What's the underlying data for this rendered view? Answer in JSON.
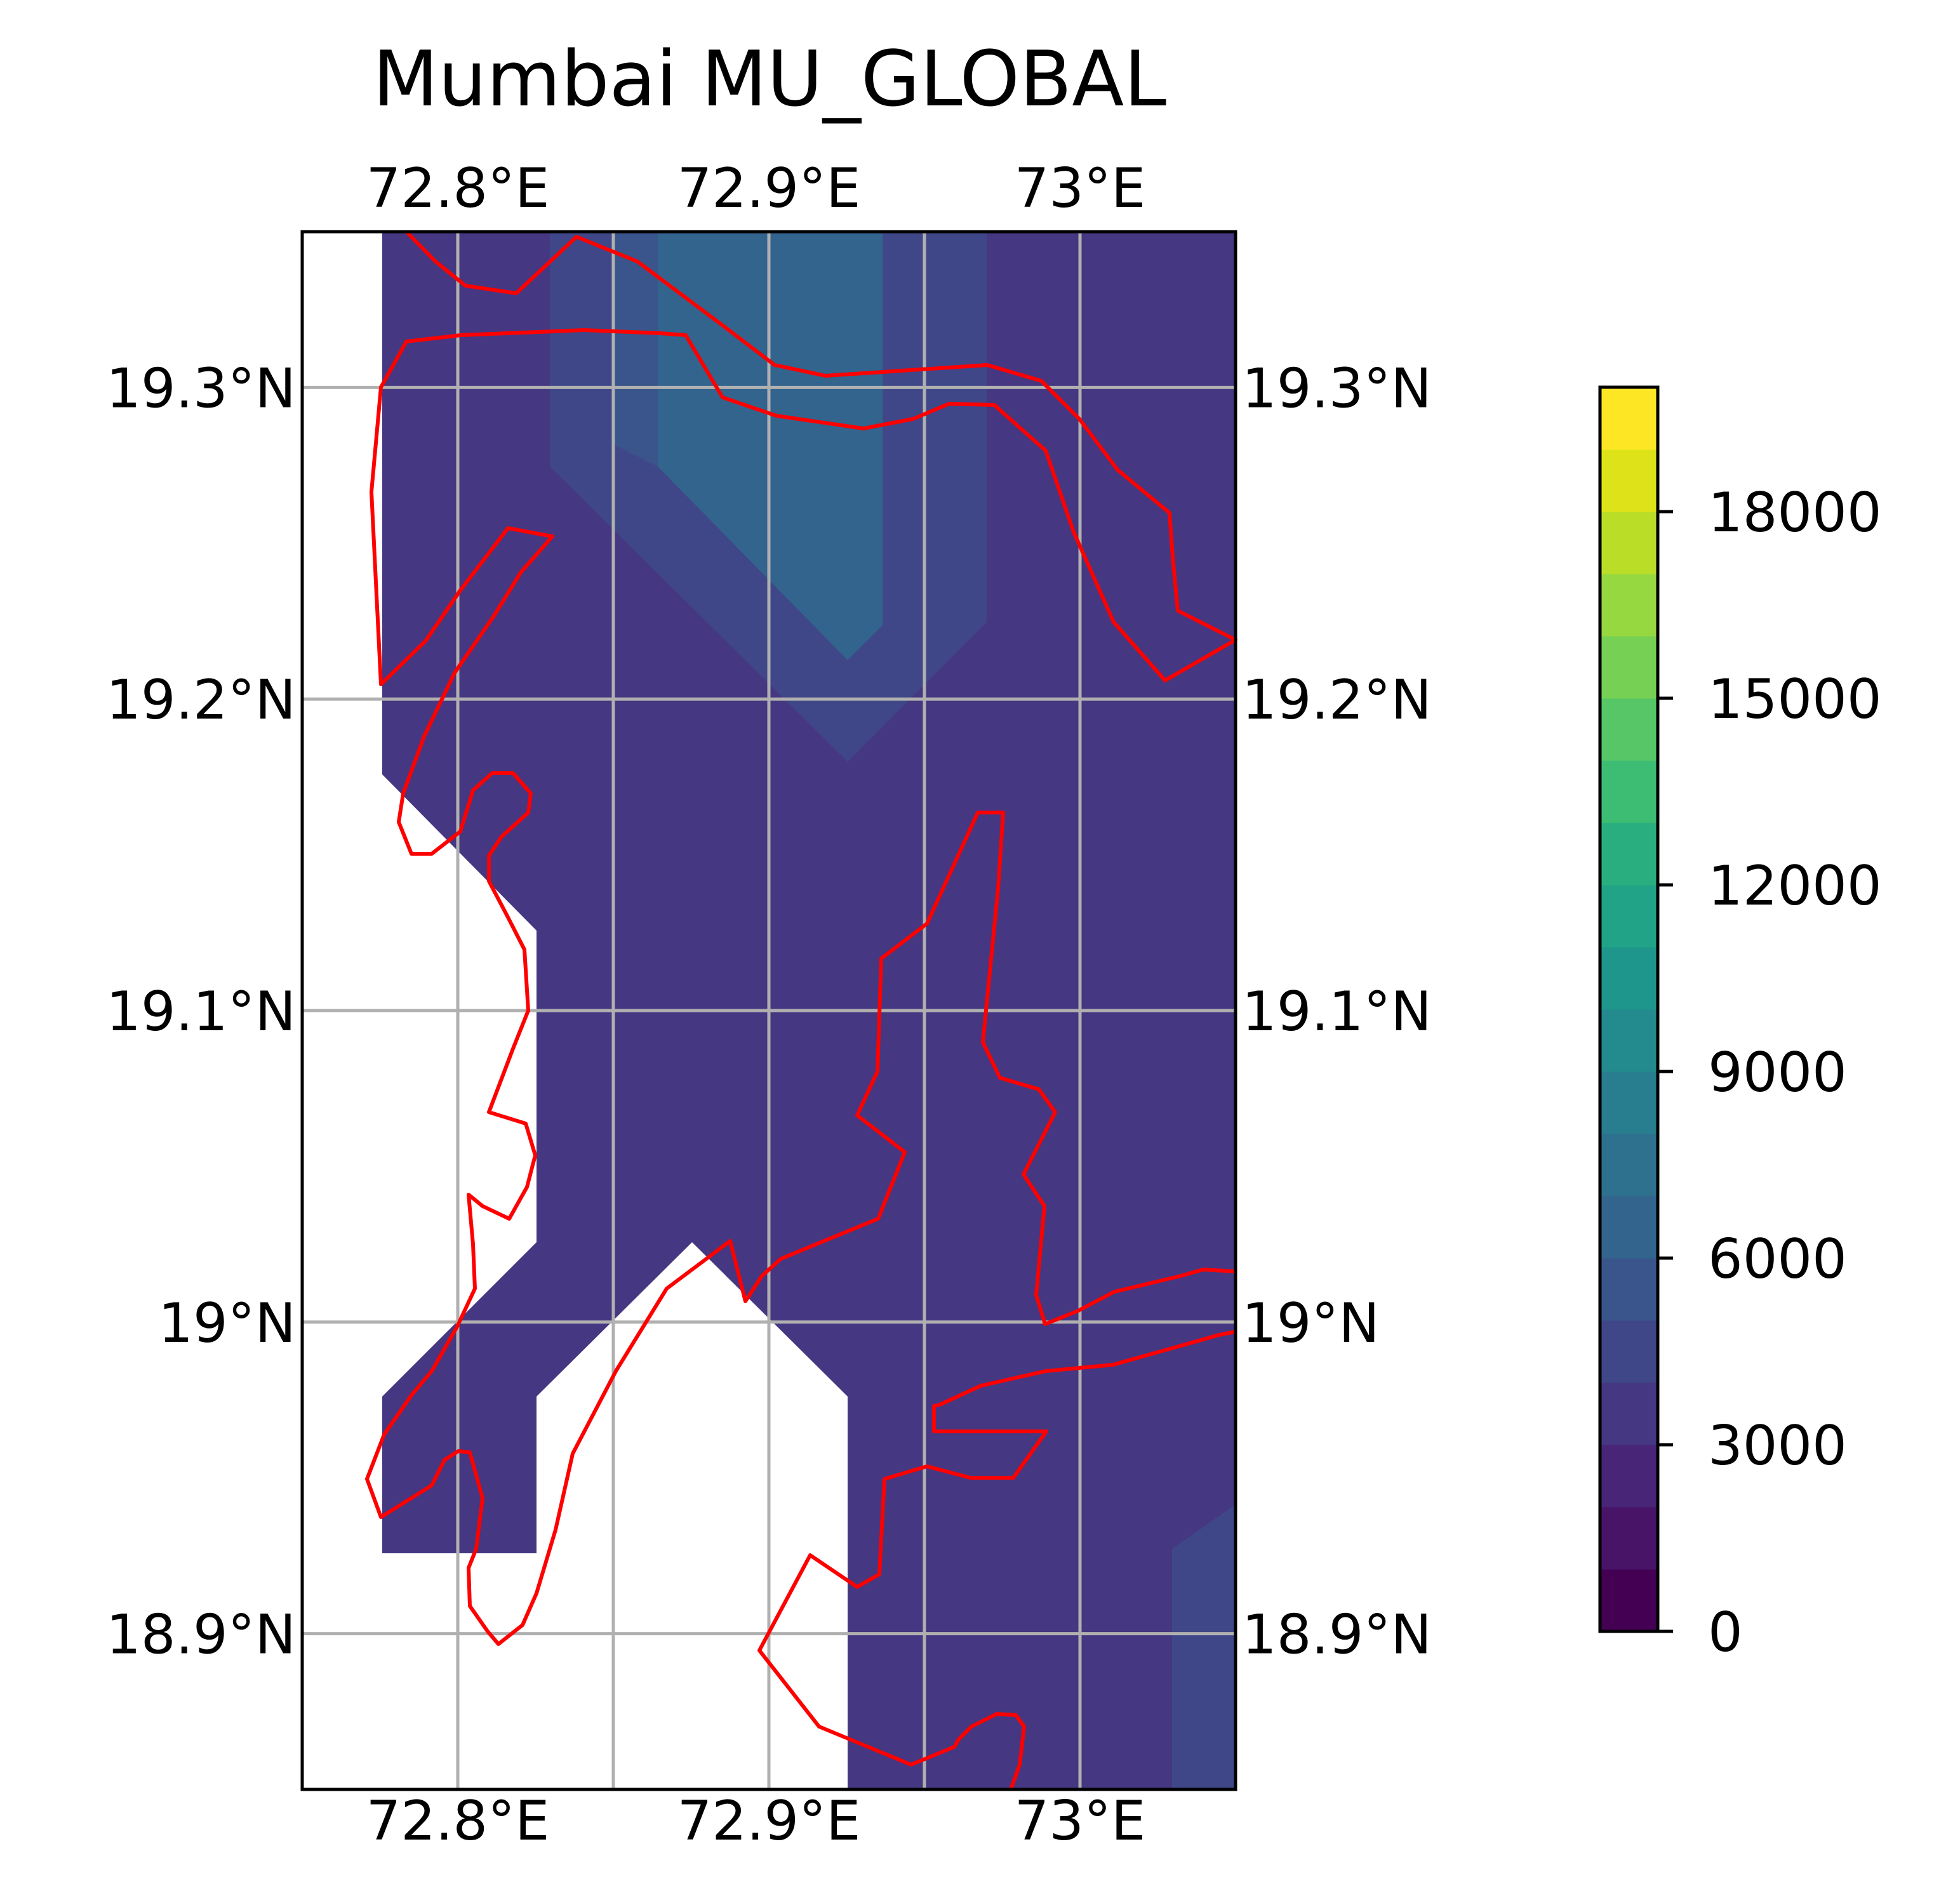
{
  "title": "Mumbai MU_GLOBAL",
  "map": {
    "lon_range": [
      72.75,
      73.05
    ],
    "lat_range": [
      18.85,
      19.35
    ],
    "lon_ticks": [
      {
        "value": 72.8,
        "label": "72.8°E"
      },
      {
        "value": 72.9,
        "label": "72.9°E"
      },
      {
        "value": 73.0,
        "label": "73°E"
      }
    ],
    "lat_ticks": [
      {
        "value": 19.3,
        "label": "19.3°N"
      },
      {
        "value": 19.2,
        "label": "19.2°N"
      },
      {
        "value": 19.1,
        "label": "19.1°N"
      },
      {
        "value": 19.0,
        "label": "19°N"
      },
      {
        "value": 18.9,
        "label": "18.9°N"
      }
    ],
    "gridlines": true,
    "coastline_color": "#ff0000",
    "gridline_color": "#b0b0b0"
  },
  "colorbar": {
    "min": 0,
    "max": 20000,
    "levels": 20,
    "ticks": [
      {
        "value": 0,
        "label": "0"
      },
      {
        "value": 3000,
        "label": "3000"
      },
      {
        "value": 6000,
        "label": "6000"
      },
      {
        "value": 9000,
        "label": "9000"
      },
      {
        "value": 12000,
        "label": "12000"
      },
      {
        "value": 15000,
        "label": "15000"
      },
      {
        "value": 18000,
        "label": "18000"
      }
    ],
    "colors": [
      "#440154",
      "#481467",
      "#482576",
      "#453781",
      "#3f4788",
      "#39558c",
      "#32648e",
      "#2d718e",
      "#287d8e",
      "#238a8d",
      "#1f968b",
      "#20a386",
      "#29af7f",
      "#3dbc74",
      "#56c667",
      "#75d054",
      "#95d840",
      "#bade28",
      "#dde318",
      "#fde725"
    ]
  },
  "fill_colors": {
    "base": "#453781",
    "level_4500": "#3f4788",
    "level_6000": "#39558c",
    "level_7000": "#32648e"
  }
}
